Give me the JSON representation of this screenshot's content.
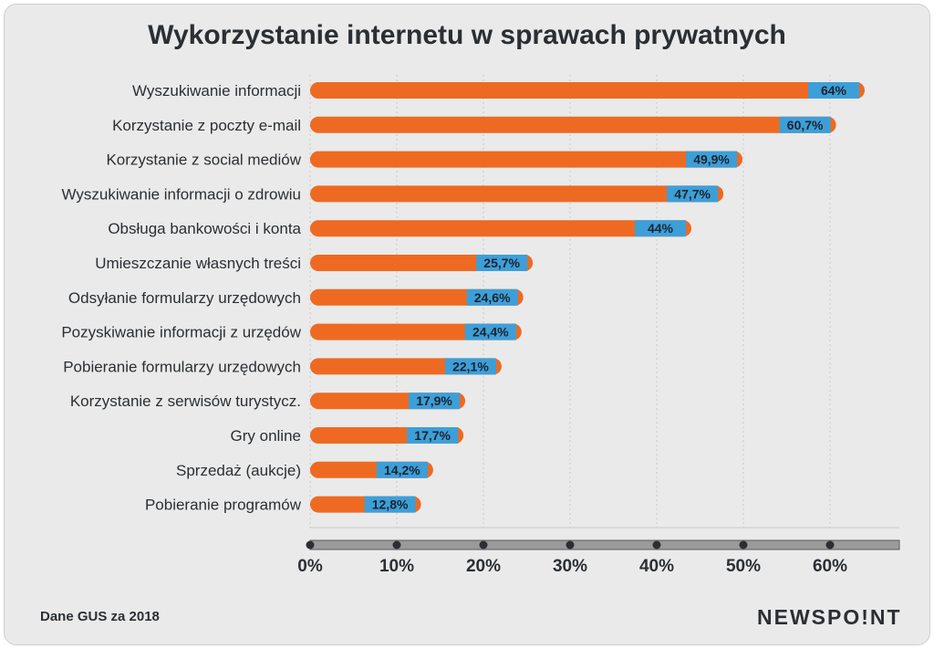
{
  "chart_data": {
    "type": "bar",
    "orientation": "horizontal",
    "title": "Wykorzystanie internetu w sprawach prywatnych",
    "categories": [
      "Wyszukiwanie informacji",
      "Korzystanie z poczty e-mail",
      "Korzystanie z social mediów",
      "Wyszukiwanie informacji o zdrowiu",
      "Obsługa bankowości i konta",
      "Umieszczanie własnych treści",
      "Odsyłanie formularzy urzędowych",
      "Pozyskiwanie informacji z urzędów",
      "Pobieranie formularzy urzędowych",
      "Korzystanie z serwisów turystycz.",
      "Gry online",
      "Sprzedaż (aukcje)",
      "Pobieranie programów"
    ],
    "values": [
      64,
      60.7,
      49.9,
      47.7,
      44,
      25.7,
      24.6,
      24.4,
      22.1,
      17.9,
      17.7,
      14.2,
      12.8
    ],
    "data_labels": [
      "64%",
      "60,7%",
      "49,9%",
      "47,7%",
      "44%",
      "25,7%",
      "24,6%",
      "24,4%",
      "22,1%",
      "17,9%",
      "17,7%",
      "14,2%",
      "12,8%"
    ],
    "xlim": [
      0,
      68
    ],
    "xticks": [
      0,
      10,
      20,
      30,
      40,
      50,
      60
    ],
    "xtick_labels": [
      "0%",
      "10%",
      "20%",
      "30%",
      "40%",
      "50%",
      "60%"
    ],
    "grid": "vertical dotted",
    "colors": {
      "bar": "#ee6a22",
      "label_bg": "#3d9fd8",
      "text": "#2b2f33"
    }
  },
  "footer": {
    "source": "Dane GUS za 2018",
    "brand": "NEWSPO!NT"
  }
}
